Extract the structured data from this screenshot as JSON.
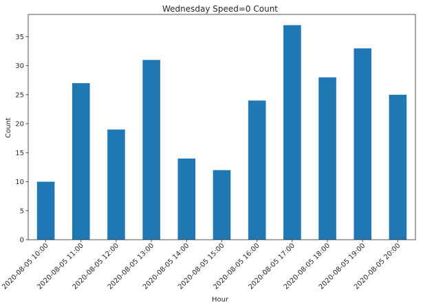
{
  "chart_data": {
    "type": "bar",
    "title": "Wednesday Speed=0 Count",
    "xlabel": "Hour",
    "ylabel": "Count",
    "categories": [
      "2020-08-05 10:00",
      "2020-08-05 11:00",
      "2020-08-05 12:00",
      "2020-08-05 13:00",
      "2020-08-05 14:00",
      "2020-08-05 15:00",
      "2020-08-05 16:00",
      "2020-08-05 17:00",
      "2020-08-05 18:00",
      "2020-08-05 19:00",
      "2020-08-05 20:00"
    ],
    "values": [
      10,
      27,
      19,
      31,
      14,
      12,
      24,
      37,
      28,
      33,
      25
    ],
    "ylim": [
      0,
      38.85
    ],
    "yticks": [
      0,
      5,
      10,
      15,
      20,
      25,
      30,
      35
    ],
    "bar_color": "#1f77b4",
    "grid": false,
    "legend": "none"
  }
}
